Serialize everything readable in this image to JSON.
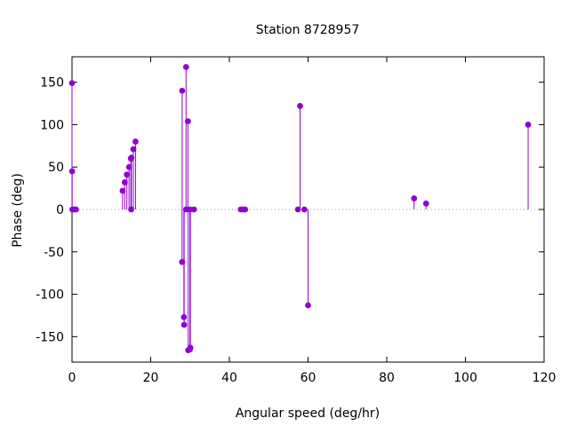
{
  "chart_data": {
    "type": "scatter",
    "title": "Station 8728957",
    "xlabel": "Angular speed (deg/hr)",
    "ylabel": "Phase (deg)",
    "xlim": [
      0,
      120
    ],
    "ylim": [
      -180,
      180
    ],
    "xticks": [
      0,
      20,
      40,
      60,
      80,
      100,
      120
    ],
    "yticks": [
      -150,
      -100,
      -50,
      0,
      50,
      100,
      150
    ],
    "zero_line": "dotted",
    "marker_color": "#9400d3",
    "points": [
      {
        "x": 0.0,
        "y": 149
      },
      {
        "x": 0.04,
        "y": 45
      },
      {
        "x": 0.08,
        "y": 0
      },
      {
        "x": 0.5,
        "y": 0
      },
      {
        "x": 1.0,
        "y": 0
      },
      {
        "x": 12.85,
        "y": 22
      },
      {
        "x": 13.4,
        "y": 32
      },
      {
        "x": 13.94,
        "y": 41
      },
      {
        "x": 14.5,
        "y": 50
      },
      {
        "x": 14.96,
        "y": 60
      },
      {
        "x": 15.04,
        "y": 0
      },
      {
        "x": 15.1,
        "y": 61
      },
      {
        "x": 15.59,
        "y": 71
      },
      {
        "x": 16.14,
        "y": 80
      },
      {
        "x": 27.97,
        "y": -62
      },
      {
        "x": 28.0,
        "y": 140
      },
      {
        "x": 28.44,
        "y": -127
      },
      {
        "x": 28.51,
        "y": -136
      },
      {
        "x": 28.99,
        "y": 168
      },
      {
        "x": 29.0,
        "y": 0
      },
      {
        "x": 29.46,
        "y": 104
      },
      {
        "x": 29.53,
        "y": -166
      },
      {
        "x": 29.96,
        "y": -165
      },
      {
        "x": 30.0,
        "y": 0
      },
      {
        "x": 30.08,
        "y": -163
      },
      {
        "x": 31.0,
        "y": 0
      },
      {
        "x": 42.9,
        "y": 0
      },
      {
        "x": 43.5,
        "y": 0
      },
      {
        "x": 44.0,
        "y": 0
      },
      {
        "x": 57.42,
        "y": 0
      },
      {
        "x": 57.97,
        "y": 122
      },
      {
        "x": 59.07,
        "y": 0
      },
      {
        "x": 60.0,
        "y": -113
      },
      {
        "x": 86.95,
        "y": 13
      },
      {
        "x": 90.0,
        "y": 7
      },
      {
        "x": 115.94,
        "y": 100
      }
    ]
  }
}
